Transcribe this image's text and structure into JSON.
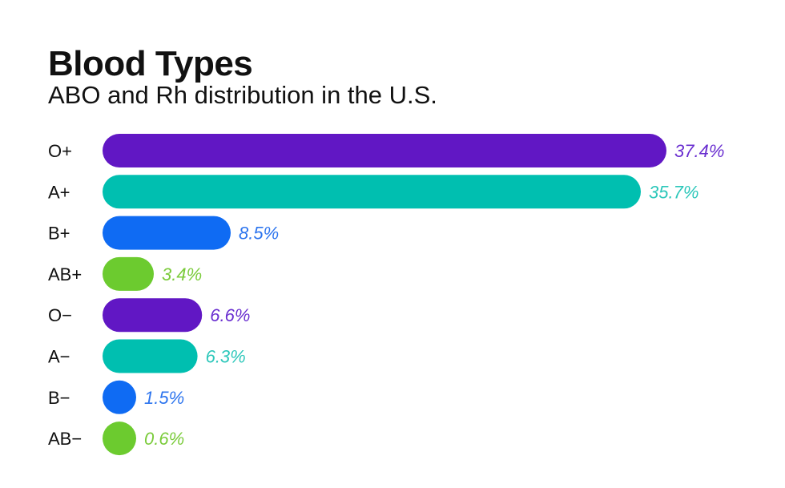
{
  "chart_data": {
    "type": "bar",
    "orientation": "horizontal",
    "title": "Blood Types",
    "subtitle": "ABO and Rh distribution in the U.S.",
    "categories": [
      "O+",
      "A+",
      "B+",
      "AB+",
      "O−",
      "A−",
      "B−",
      "AB−"
    ],
    "values": [
      37.4,
      35.7,
      8.5,
      3.4,
      6.6,
      6.3,
      1.5,
      0.6
    ],
    "value_labels": [
      "37.4%",
      "35.7%",
      "8.5%",
      "3.4%",
      "6.6%",
      "6.3%",
      "1.5%",
      "0.6%"
    ],
    "bar_colors": [
      "#6117c4",
      "#00bfb0",
      "#0f6bf3",
      "#6ccb2f",
      "#6117c4",
      "#00bfb0",
      "#0f6bf3",
      "#6ccb2f"
    ],
    "label_colors": [
      "#6a2fd0",
      "#2cc7ba",
      "#2c74ee",
      "#7acb3a",
      "#6a2fd0",
      "#2cc7ba",
      "#2c74ee",
      "#7acb3a"
    ],
    "xlim": [
      0,
      37.4
    ],
    "grid": false,
    "legend": "none"
  }
}
